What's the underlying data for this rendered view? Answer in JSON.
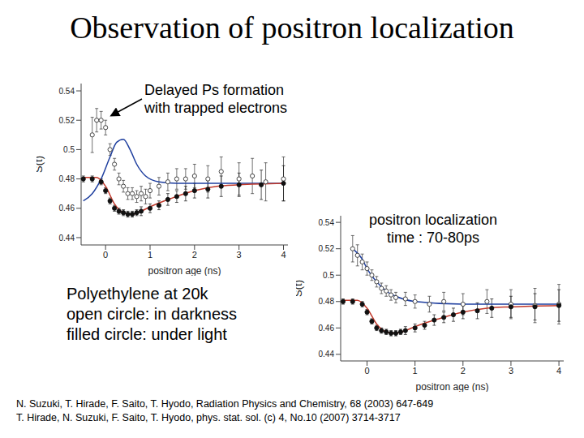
{
  "title": "Observation of positron localization",
  "notes": [
    "Polyethylene at 20k",
    "open circle: in darkness",
    "filled circle: under light"
  ],
  "references": [
    "N. Suzuki, T. Hirade, F. Saito,  T. Hyodo, Radiation Physics and Chemistry, 68 (2003) 647-649",
    "T. Hirade, N. Suzuki, F. Saito, T. Hyodo, phys. stat. sol. (c) 4, No.10 (2007) 3714-3717"
  ],
  "chart_data": [
    {
      "type": "scatter",
      "annotation": [
        "Delayed Ps formation",
        "with trapped electrons"
      ],
      "x_label": "positron age (ns)",
      "y_label": "S(t)",
      "xlim": [
        -0.55,
        4.1
      ],
      "xticks": [
        0,
        1,
        2,
        3,
        4
      ],
      "ylim": [
        0.435,
        0.545
      ],
      "yticks": [
        0.44,
        0.46,
        0.48,
        0.5,
        0.52,
        0.54
      ],
      "series": [
        {
          "name": "in darkness",
          "type": "scatter",
          "marker": "circle-open",
          "color": "#333333",
          "x": [
            -0.3,
            -0.2,
            -0.1,
            0,
            0.1,
            0.2,
            0.3,
            0.4,
            0.5,
            0.6,
            0.7,
            0.8,
            0.9,
            1.0,
            1.2,
            1.4,
            1.6,
            1.8,
            2.0,
            2.3,
            2.6,
            3.0,
            3.3,
            3.6,
            4.0
          ],
          "values": [
            0.51,
            0.52,
            0.52,
            0.515,
            0.5,
            0.49,
            0.48,
            0.475,
            0.47,
            0.47,
            0.468,
            0.47,
            0.468,
            0.472,
            0.475,
            0.478,
            0.48,
            0.48,
            0.482,
            0.48,
            0.485,
            0.48,
            0.482,
            0.478,
            0.48
          ],
          "errors": [
            0.012,
            0.008,
            0.006,
            0.005,
            0.004,
            0.004,
            0.004,
            0.004,
            0.004,
            0.004,
            0.004,
            0.005,
            0.005,
            0.005,
            0.006,
            0.006,
            0.007,
            0.007,
            0.008,
            0.009,
            0.01,
            0.011,
            0.012,
            0.013,
            0.015
          ]
        },
        {
          "name": "under light",
          "type": "scatter",
          "marker": "circle",
          "color": "#111111",
          "x": [
            -0.5,
            -0.3,
            -0.1,
            0,
            0.1,
            0.2,
            0.3,
            0.4,
            0.5,
            0.6,
            0.7,
            0.8,
            1.0,
            1.2,
            1.4,
            1.6,
            1.8,
            2.0,
            2.3,
            2.6,
            3.0,
            3.5,
            4.0
          ],
          "values": [
            0.48,
            0.48,
            0.478,
            0.472,
            0.465,
            0.46,
            0.458,
            0.457,
            0.456,
            0.456,
            0.457,
            0.458,
            0.46,
            0.462,
            0.466,
            0.468,
            0.47,
            0.472,
            0.473,
            0.475,
            0.476,
            0.476,
            0.477
          ],
          "errors": [
            0.002,
            0.002,
            0.002,
            0.002,
            0.002,
            0.002,
            0.002,
            0.002,
            0.002,
            0.002,
            0.002,
            0.003,
            0.003,
            0.003,
            0.004,
            0.004,
            0.005,
            0.005,
            0.006,
            0.007,
            0.008,
            0.01,
            0.012
          ]
        },
        {
          "type": "line",
          "color": "#1f3f9f",
          "x": [
            -0.5,
            -0.3,
            -0.1,
            0.1,
            0.25,
            0.4,
            0.55,
            0.7,
            0.9,
            1.2,
            1.6,
            2,
            3,
            4
          ],
          "values": [
            0.465,
            0.47,
            0.48,
            0.495,
            0.505,
            0.507,
            0.5,
            0.49,
            0.482,
            0.478,
            0.477,
            0.477,
            0.477,
            0.477
          ]
        },
        {
          "type": "line",
          "color": "#c0392b",
          "x": [
            -0.5,
            -0.2,
            0,
            0.2,
            0.4,
            0.6,
            0.8,
            1.0,
            1.5,
            2,
            2.5,
            3,
            4
          ],
          "values": [
            0.481,
            0.481,
            0.475,
            0.463,
            0.457,
            0.456,
            0.458,
            0.461,
            0.467,
            0.472,
            0.475,
            0.476,
            0.477
          ]
        }
      ]
    },
    {
      "type": "scatter",
      "annotation": [
        "positron localization",
        "time : 70-80ps"
      ],
      "x_label": "positron age (ns)",
      "y_label": "S(t)",
      "xlim": [
        -0.55,
        4.1
      ],
      "xticks": [
        0,
        1,
        2,
        3,
        4
      ],
      "ylim": [
        0.435,
        0.545
      ],
      "yticks": [
        0.44,
        0.46,
        0.48,
        0.5,
        0.52,
        0.54
      ],
      "series": [
        {
          "name": "in darkness",
          "type": "scatter",
          "marker": "circle-open",
          "color": "#333333",
          "x": [
            -0.3,
            -0.2,
            -0.1,
            0,
            0.1,
            0.2,
            0.3,
            0.4,
            0.5,
            0.6,
            0.8,
            1.0,
            1.3,
            1.6,
            2.0,
            2.5,
            3.0,
            3.5,
            4.0
          ],
          "values": [
            0.52,
            0.515,
            0.51,
            0.505,
            0.5,
            0.495,
            0.49,
            0.488,
            0.485,
            0.483,
            0.482,
            0.48,
            0.478,
            0.48,
            0.478,
            0.48,
            0.478,
            0.477,
            0.478
          ],
          "errors": [
            0.01,
            0.008,
            0.006,
            0.005,
            0.004,
            0.004,
            0.004,
            0.004,
            0.004,
            0.004,
            0.005,
            0.005,
            0.006,
            0.007,
            0.008,
            0.009,
            0.011,
            0.013,
            0.015
          ]
        },
        {
          "name": "under light",
          "type": "scatter",
          "marker": "circle",
          "color": "#111111",
          "x": [
            -0.5,
            -0.3,
            -0.1,
            0,
            0.1,
            0.2,
            0.3,
            0.4,
            0.5,
            0.6,
            0.7,
            0.8,
            1.0,
            1.2,
            1.4,
            1.6,
            1.8,
            2.0,
            2.3,
            2.6,
            3.0,
            3.5,
            4.0
          ],
          "values": [
            0.48,
            0.48,
            0.478,
            0.472,
            0.465,
            0.46,
            0.458,
            0.457,
            0.456,
            0.456,
            0.457,
            0.458,
            0.46,
            0.462,
            0.466,
            0.468,
            0.47,
            0.472,
            0.473,
            0.475,
            0.476,
            0.476,
            0.477
          ],
          "errors": [
            0.002,
            0.002,
            0.002,
            0.002,
            0.002,
            0.002,
            0.002,
            0.002,
            0.002,
            0.002,
            0.002,
            0.003,
            0.003,
            0.003,
            0.004,
            0.004,
            0.005,
            0.005,
            0.006,
            0.007,
            0.008,
            0.01,
            0.012
          ]
        },
        {
          "type": "line",
          "color": "#1f3f9f",
          "x": [
            -0.3,
            -0.1,
            0,
            0.2,
            0.4,
            0.6,
            1.0,
            2,
            4
          ],
          "values": [
            0.52,
            0.512,
            0.505,
            0.495,
            0.488,
            0.484,
            0.48,
            0.478,
            0.478
          ]
        },
        {
          "type": "line",
          "color": "#c0392b",
          "x": [
            -0.5,
            -0.2,
            0,
            0.2,
            0.4,
            0.6,
            0.8,
            1.0,
            1.5,
            2,
            2.5,
            3,
            4
          ],
          "values": [
            0.481,
            0.481,
            0.475,
            0.463,
            0.457,
            0.456,
            0.458,
            0.461,
            0.467,
            0.472,
            0.475,
            0.476,
            0.477
          ]
        }
      ]
    }
  ]
}
